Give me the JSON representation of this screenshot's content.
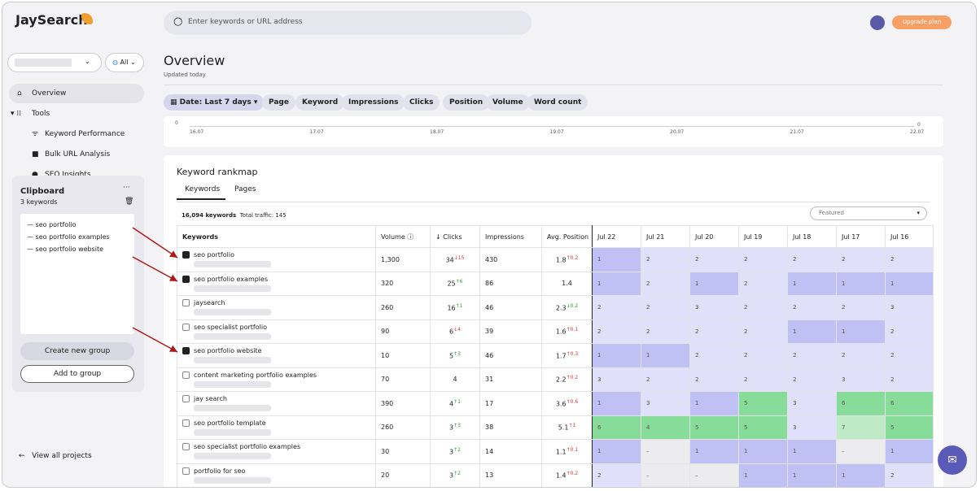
{
  "brand": "JaySearch",
  "search_placeholder": "Enter keywords or URL address",
  "upgrade": "Upgrade plan",
  "project_filter": "All",
  "nav": [
    "Overview",
    "Tools",
    "Keyword Performance",
    "Bulk URL Analysis",
    "SEO Insights"
  ],
  "view_all": "View all projects",
  "clipboard": {
    "title": "Clipboard",
    "count": "3 keywords",
    "items": [
      "seo portfolio",
      "seo portfolio examples",
      "seo portfolio website"
    ],
    "create": "Create new group",
    "add": "Add to group"
  },
  "header": {
    "title": "Overview",
    "subtitle": "Updated today"
  },
  "filters": [
    "Date: Last 7 days",
    "Page",
    "Keyword",
    "Impressions",
    "Clicks",
    "Position",
    "Volume",
    "Word count"
  ],
  "chart_axis": {
    "left": "0",
    "right": "0",
    "dates": [
      "16.07",
      "17.07",
      "18.07",
      "19.07",
      "20.07",
      "21.07",
      "22.07"
    ]
  },
  "rankmap": {
    "title": "Keyword rankmap",
    "tabs": [
      "Keywords",
      "Pages"
    ],
    "summary": "16,094 keywords",
    "traffic": "Total traffic: 145",
    "sort": "Featured"
  },
  "table": {
    "columns": [
      "Keywords",
      "Volume",
      "Clicks",
      "Impressions",
      "Avg. Position",
      "Jul 22",
      "Jul 21",
      "Jul 20",
      "Jul 19",
      "Jul 18",
      "Jul 17",
      "Jul 16"
    ],
    "rows": [
      {
        "keyword": "seo portfolio",
        "checked": true,
        "volume": "1,300",
        "clicks": "34",
        "clicks_change": "↓15",
        "impressions": "430",
        "position": "1.8",
        "position_change": "↑0.2",
        "ranks": [
          "1",
          "2",
          "2",
          "2",
          "2",
          "2",
          "2"
        ]
      },
      {
        "keyword": "seo portfolio examples",
        "checked": true,
        "volume": "320",
        "clicks": "25",
        "clicks_change": "↑6",
        "impressions": "86",
        "position": "1.4",
        "position_change": null,
        "ranks": [
          "1",
          "2",
          "1",
          "2",
          "1",
          "1",
          "1"
        ]
      },
      {
        "keyword": "jaysearch",
        "checked": false,
        "volume": "260",
        "clicks": "16",
        "clicks_change": "↑1",
        "impressions": "46",
        "position": "2.3",
        "position_change": "↓0.2",
        "ranks": [
          "2",
          "2",
          "3",
          "2",
          "2",
          "2",
          "3"
        ]
      },
      {
        "keyword": "seo specialist portfolio",
        "checked": false,
        "volume": "90",
        "clicks": "6",
        "clicks_change": "↓4",
        "impressions": "39",
        "position": "1.6",
        "position_change": "↑0.1",
        "ranks": [
          "2",
          "2",
          "2",
          "2",
          "1",
          "1",
          "2"
        ]
      },
      {
        "keyword": "seo portfolio website",
        "checked": true,
        "volume": "10",
        "clicks": "5",
        "clicks_change": "↑3",
        "impressions": "46",
        "position": "1.7",
        "position_change": "↑0.3",
        "ranks": [
          "1",
          "1",
          "2",
          "2",
          "2",
          "2",
          "2"
        ]
      },
      {
        "keyword": "content marketing portfolio examples",
        "checked": false,
        "volume": "70",
        "clicks": "4",
        "clicks_change": null,
        "impressions": "31",
        "position": "2.2",
        "position_change": "↑0.2",
        "ranks": [
          "3",
          "2",
          "2",
          "2",
          "2",
          "3",
          "2"
        ]
      },
      {
        "keyword": "jay search",
        "checked": false,
        "volume": "390",
        "clicks": "4",
        "clicks_change": "↑1",
        "impressions": "17",
        "position": "3.6",
        "position_change": "↑0.6",
        "ranks": [
          "1",
          "3",
          "1",
          "5",
          "3",
          "6",
          "6"
        ]
      },
      {
        "keyword": "seo portfolio template",
        "checked": false,
        "volume": "260",
        "clicks": "3",
        "clicks_change": "↑3",
        "impressions": "38",
        "position": "5.1",
        "position_change": "↑1",
        "ranks": [
          "6",
          "4",
          "5",
          "5",
          "3",
          "7",
          "5"
        ]
      },
      {
        "keyword": "seo specialist portfolio examples",
        "checked": false,
        "volume": "30",
        "clicks": "3",
        "clicks_change": "↑2",
        "impressions": "14",
        "position": "1.1",
        "position_change": "↑0.1",
        "ranks": [
          "1",
          "–",
          "1",
          "1",
          "1",
          "–",
          "1"
        ]
      },
      {
        "keyword": "portfolio for seo",
        "checked": false,
        "volume": "20",
        "clicks": "3",
        "clicks_change": "↑2",
        "impressions": "13",
        "position": "1.4",
        "position_change": "↑0.2",
        "ranks": [
          "2",
          "–",
          "–",
          "1",
          "1",
          "1",
          "2"
        ]
      }
    ]
  }
}
